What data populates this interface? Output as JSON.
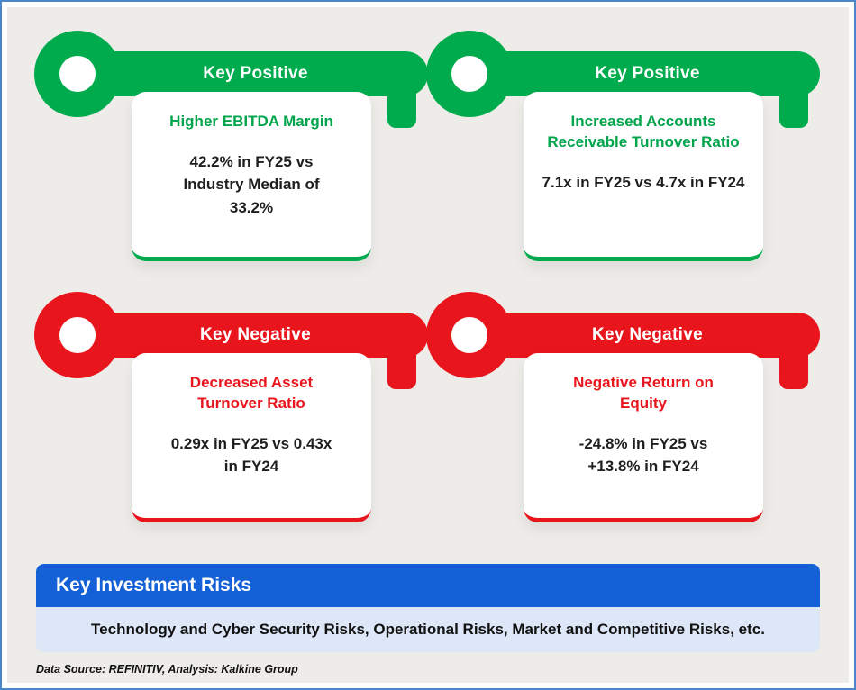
{
  "page": {
    "background_color": "#eeece9",
    "border_color": "#4a86c8"
  },
  "cards": [
    {
      "type": "positive",
      "title": "Key Positive",
      "heading": "Higher EBITDA Margin",
      "detail": "42.2% in FY25 vs\nIndustry Median of\n33.2%",
      "color": "#00ab4e"
    },
    {
      "type": "positive",
      "title": "Key Positive",
      "heading": "Increased Accounts\nReceivable  Turnover Ratio",
      "detail": "7.1x in FY25 vs 4.7x in FY24",
      "color": "#00ab4e"
    },
    {
      "type": "negative",
      "title": "Key Negative",
      "heading": "Decreased Asset\nTurnover Ratio",
      "detail": "0.29x in FY25 vs 0.43x\nin FY24",
      "color": "#e9151d"
    },
    {
      "type": "negative",
      "title": "Key Negative",
      "heading": "Negative Return on\nEquity",
      "detail": "-24.8% in FY25 vs\n+13.8% in FY24",
      "color": "#e9151d"
    }
  ],
  "risks": {
    "title": "Key Investment Risks",
    "body": "Technology and Cyber Security Risks, Operational Risks, Market and Competitive Risks, etc.",
    "header_color": "#1460d6",
    "body_color": "#dde7f7"
  },
  "footer": {
    "note": "Data Source: REFINITIV, Analysis: Kalkine Group"
  }
}
